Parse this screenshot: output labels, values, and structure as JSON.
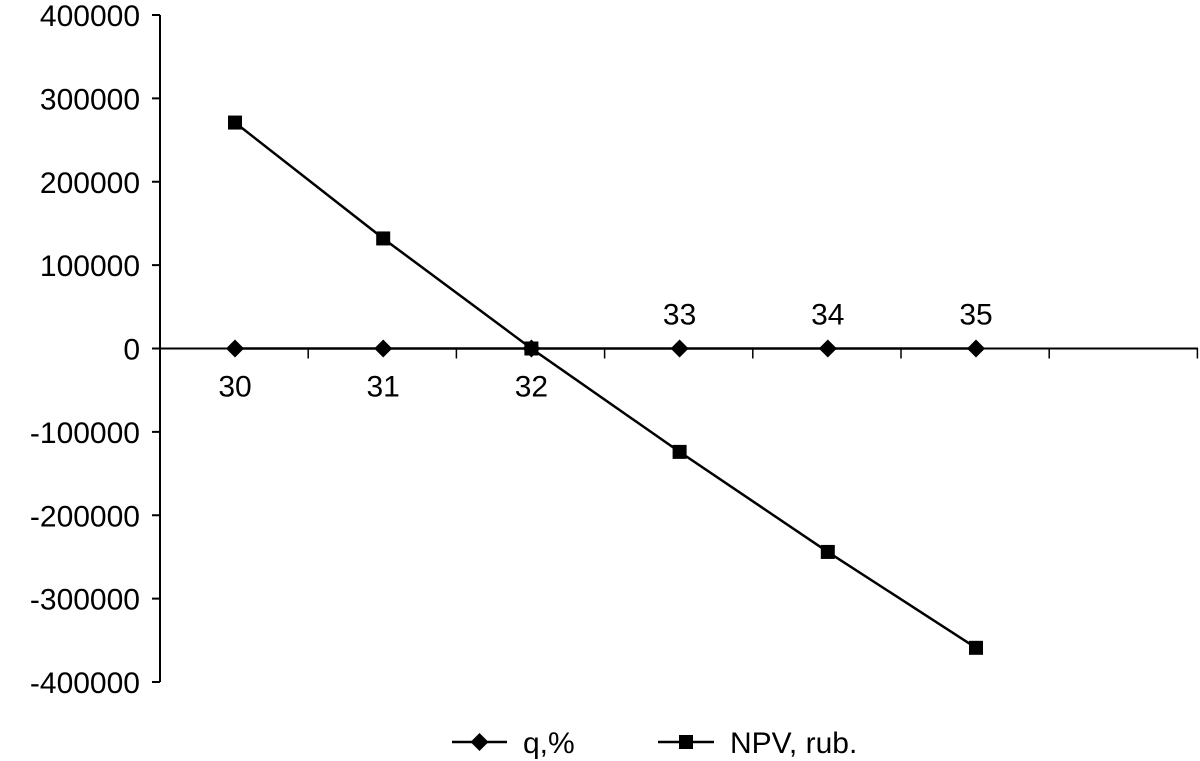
{
  "chart_data": {
    "type": "line",
    "categories": [
      "30",
      "31",
      "32",
      "33",
      "34",
      "35"
    ],
    "x": [
      30,
      31,
      32,
      33,
      34,
      35
    ],
    "series": [
      {
        "name": "q,%",
        "marker": "diamond",
        "color": "#000000",
        "values": [
          0,
          0,
          0,
          0,
          0,
          0
        ]
      },
      {
        "name": "NPV, rub.",
        "marker": "square",
        "color": "#000000",
        "values": [
          271000,
          132000,
          0,
          -124000,
          -244000,
          -359000
        ]
      }
    ],
    "ylim": [
      -400000,
      400000
    ],
    "yticks": [
      "400000",
      "300000",
      "200000",
      "100000",
      "0",
      "-100000",
      "-200000",
      "-300000",
      "-400000"
    ],
    "ytick_values": [
      400000,
      300000,
      200000,
      100000,
      0,
      -100000,
      -200000,
      -300000,
      -400000
    ],
    "title": "",
    "xlabel": "",
    "ylabel": "",
    "grid": false,
    "legend": "bottom-center"
  }
}
